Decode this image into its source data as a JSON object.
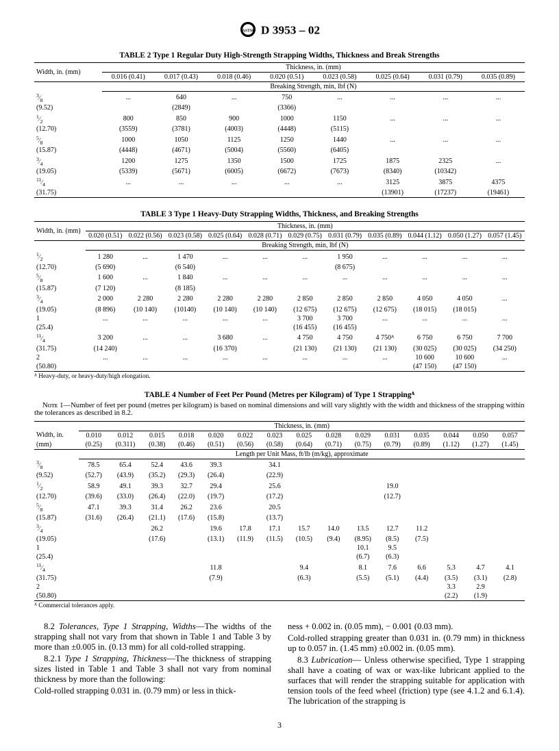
{
  "header": {
    "designation": "D 3953 – 02"
  },
  "table2": {
    "title": "TABLE 2  Type 1 Regular Duty High-Strength Strapping Widths, Thickness and Break Strengths",
    "width_header": "Width, in.\n(mm)",
    "thickness_header": "Thickness, in. (mm)",
    "thickness_cols": [
      "0.016 (0.41)",
      "0.017 (0.43)",
      "0.018 (0.46)",
      "0.020 (0.51)",
      "0.023 (0.58)",
      "0.025 (0.64)",
      "0.031 (0.79)",
      "0.035 (0.89)"
    ],
    "sub_header": "Breaking Strength, min, lbf (N)",
    "rows": [
      {
        "w1": "3⁄8",
        "w2": "(9.52)",
        "v": [
          [
            "...",
            ""
          ],
          [
            "640",
            "(2849)"
          ],
          [
            "...",
            ""
          ],
          [
            "750",
            "(3366)"
          ],
          [
            "...",
            ""
          ],
          [
            "...",
            ""
          ],
          [
            "...",
            ""
          ],
          [
            "...",
            ""
          ]
        ]
      },
      {
        "w1": "1⁄2",
        "w2": "(12.70)",
        "v": [
          [
            "800",
            "(3559)"
          ],
          [
            "850",
            "(3781)"
          ],
          [
            "900",
            "(4003)"
          ],
          [
            "1000",
            "(4448)"
          ],
          [
            "1150",
            "(5115)"
          ],
          [
            "...",
            ""
          ],
          [
            "...",
            ""
          ],
          [
            "...",
            ""
          ]
        ]
      },
      {
        "w1": "5⁄8",
        "w2": "(15.87)",
        "v": [
          [
            "1000",
            "(4448)"
          ],
          [
            "1050",
            "(4671)"
          ],
          [
            "1125",
            "(5004)"
          ],
          [
            "1250",
            "(5560)"
          ],
          [
            "1440",
            "(6405)"
          ],
          [
            "...",
            ""
          ],
          [
            "...",
            ""
          ],
          [
            "...",
            ""
          ]
        ]
      },
      {
        "w1": "3⁄4",
        "w2": "(19.05)",
        "v": [
          [
            "1200",
            "(5339)"
          ],
          [
            "1275",
            "(5671)"
          ],
          [
            "1350",
            "(6005)"
          ],
          [
            "1500",
            "(6672)"
          ],
          [
            "1725",
            "(7673)"
          ],
          [
            "1875",
            "(8340)"
          ],
          [
            "2325",
            "(10342)"
          ],
          [
            "...",
            ""
          ]
        ]
      },
      {
        "w1": "11⁄4",
        "w2": "(31.75)",
        "v": [
          [
            "...",
            ""
          ],
          [
            "...",
            ""
          ],
          [
            "...",
            ""
          ],
          [
            "...",
            ""
          ],
          [
            "...",
            ""
          ],
          [
            "3125",
            "(13901)"
          ],
          [
            "3875",
            "(17237)"
          ],
          [
            "4375",
            "(19461)"
          ]
        ]
      }
    ]
  },
  "table3": {
    "title": "TABLE 3  Type 1 Heavy-Duty Strapping Widths, Thickness, and Breaking Strengths",
    "width_header": "Width,\nin. (mm)",
    "thickness_header": "Thickness, in. (mm)",
    "thickness_cols": [
      "0.020 (0.51)",
      "0.022 (0.56)",
      "0.023 (0.58)",
      "0.025 (0.64)",
      "0.028 (0.71)",
      "0.029 (0.75)",
      "0.031 (0.79)",
      "0.035 (0.89)",
      "0.044 (1.12)",
      "0.050 (1.27)",
      "0.057 (1.45)"
    ],
    "sub_header": "Breaking Strength, min, lbf (N)",
    "rows": [
      {
        "w1": "1⁄2",
        "w2": "(12.70)",
        "v": [
          [
            "1 280",
            "(5 690)"
          ],
          [
            "...",
            ""
          ],
          [
            "1 470",
            "(6 540)"
          ],
          [
            "...",
            ""
          ],
          [
            "...",
            ""
          ],
          [
            "...",
            ""
          ],
          [
            "1 950",
            "(8 675)"
          ],
          [
            "...",
            ""
          ],
          [
            "...",
            ""
          ],
          [
            "...",
            ""
          ],
          [
            "...",
            ""
          ]
        ]
      },
      {
        "w1": "5⁄8",
        "w2": "(15.87)",
        "v": [
          [
            "1 600",
            "(7 120)"
          ],
          [
            "...",
            ""
          ],
          [
            "1 840",
            "(8 185)"
          ],
          [
            "...",
            ""
          ],
          [
            "...",
            ""
          ],
          [
            "...",
            ""
          ],
          [
            "...",
            ""
          ],
          [
            "...",
            ""
          ],
          [
            "...",
            ""
          ],
          [
            "...",
            ""
          ],
          [
            "...",
            ""
          ]
        ]
      },
      {
        "w1": "3⁄4",
        "w2": "(19.05)",
        "v": [
          [
            "2 000",
            "(8 896)"
          ],
          [
            "2 280",
            "(10 140)"
          ],
          [
            "2 280",
            "(10140)"
          ],
          [
            "2 280",
            "(10 140)"
          ],
          [
            "2 280",
            "(10 140)"
          ],
          [
            "2 850",
            "(12 675)"
          ],
          [
            "2 850",
            "(12 675)"
          ],
          [
            "2 850",
            "(12 675)"
          ],
          [
            "4 050",
            "(18 015)"
          ],
          [
            "4 050",
            "(18 015)"
          ],
          [
            "...",
            ""
          ]
        ]
      },
      {
        "w1": "1",
        "w2": "(25.4)",
        "v": [
          [
            "...",
            ""
          ],
          [
            "...",
            ""
          ],
          [
            "...",
            ""
          ],
          [
            "...",
            ""
          ],
          [
            "...",
            ""
          ],
          [
            "3 700",
            "(16 455)"
          ],
          [
            "3 700",
            "(16 455)"
          ],
          [
            "...",
            ""
          ],
          [
            "...",
            ""
          ],
          [
            "...",
            ""
          ],
          [
            "...",
            ""
          ]
        ]
      },
      {
        "w1": "11⁄4",
        "w2": "(31.75)",
        "v": [
          [
            "3 200",
            "(14 240)"
          ],
          [
            "...",
            ""
          ],
          [
            "...",
            ""
          ],
          [
            "3 680",
            "(16 370)"
          ],
          [
            "...",
            ""
          ],
          [
            "4 750",
            "(21 130)"
          ],
          [
            "4 750",
            "(21 130)"
          ],
          [
            "4 750ᴬ",
            "(21 130)"
          ],
          [
            "6 750",
            "(30 025)"
          ],
          [
            "6 750",
            "(30 025)"
          ],
          [
            "7 700",
            "(34 250)"
          ]
        ]
      },
      {
        "w1": "2",
        "w2": "(50.80)",
        "v": [
          [
            "...",
            ""
          ],
          [
            "...",
            ""
          ],
          [
            "...",
            ""
          ],
          [
            "...",
            ""
          ],
          [
            "...",
            ""
          ],
          [
            "...",
            ""
          ],
          [
            "...",
            ""
          ],
          [
            "...",
            ""
          ],
          [
            "10 600",
            "(47 150)"
          ],
          [
            "10 600",
            "(47 150)"
          ],
          [
            "...",
            ""
          ]
        ]
      }
    ],
    "footnote": "ᴬ Heavy-duty, or heavy-duty/high elongation."
  },
  "table4": {
    "title": "TABLE 4  Number of Feet Per Pound (Metres per Kilogram) of Type 1 Strappingᴬ",
    "note": "Nᴏᴛᴇ 1—Number of feet per pound (metres per kilogram) is based on nominal dimensions and will vary slightly with the width and thickness of the strapping within the tolerances as described in 8.2.",
    "width_header": "Width, in.\n(mm)",
    "thickness_header": "Thickness, in. (mm)",
    "thickness_cols": [
      [
        "0.010",
        "(0.25)"
      ],
      [
        "0.012",
        "(0.311)"
      ],
      [
        "0.015",
        "(0.38)"
      ],
      [
        "0.018",
        "(0.46)"
      ],
      [
        "0.020",
        "(0.51)"
      ],
      [
        "0.022",
        "(0.56)"
      ],
      [
        "0.023",
        "(0.58)"
      ],
      [
        "0.025",
        "(0.64)"
      ],
      [
        "0.028",
        "(0.71)"
      ],
      [
        "0.029",
        "(0.75)"
      ],
      [
        "0.031",
        "(0.79)"
      ],
      [
        "0.035",
        "(0.89)"
      ],
      [
        "0.044",
        "(1.12)"
      ],
      [
        "0.050",
        "(1.27)"
      ],
      [
        "0.057",
        "(1.45)"
      ]
    ],
    "sub_header": "Length per Unit Mass, ft/lb (m/kg), approximate",
    "rows": [
      {
        "w1": "3⁄8",
        "w2": "(9.52)",
        "v": [
          [
            "78.5",
            "(52.7)"
          ],
          [
            "65.4",
            "(43.9)"
          ],
          [
            "52.4",
            "(35.2)"
          ],
          [
            "43.6",
            "(29.3)"
          ],
          [
            "39.3",
            "(26.4)"
          ],
          [
            "",
            ""
          ],
          [
            "34.1",
            "(22.9)"
          ],
          [
            "",
            ""
          ],
          [
            "",
            ""
          ],
          [
            "",
            ""
          ],
          [
            "",
            ""
          ],
          [
            "",
            ""
          ],
          [
            "",
            ""
          ],
          [
            "",
            ""
          ],
          [
            "",
            ""
          ]
        ]
      },
      {
        "w1": "1⁄2",
        "w2": "(12.70)",
        "v": [
          [
            "58.9",
            "(39.6)"
          ],
          [
            "49.1",
            "(33.0)"
          ],
          [
            "39.3",
            "(26.4)"
          ],
          [
            "32.7",
            "(22.0)"
          ],
          [
            "29.4",
            "(19.7)"
          ],
          [
            "",
            ""
          ],
          [
            "25.6",
            "(17.2)"
          ],
          [
            "",
            ""
          ],
          [
            "",
            ""
          ],
          [
            "",
            ""
          ],
          [
            "19.0",
            "(12.7)"
          ],
          [
            "",
            ""
          ],
          [
            "",
            ""
          ],
          [
            "",
            ""
          ],
          [
            "",
            ""
          ]
        ]
      },
      {
        "w1": "5⁄8",
        "w2": "(15.87)",
        "v": [
          [
            "47.1",
            "(31.6)"
          ],
          [
            "39.3",
            "(26.4)"
          ],
          [
            "31.4",
            "(21.1)"
          ],
          [
            "26.2",
            "(17.6)"
          ],
          [
            "23.6",
            "(15.8)"
          ],
          [
            "",
            ""
          ],
          [
            "20.5",
            "(13.7)"
          ],
          [
            "",
            ""
          ],
          [
            "",
            ""
          ],
          [
            "",
            ""
          ],
          [
            "",
            ""
          ],
          [
            "",
            ""
          ],
          [
            "",
            ""
          ],
          [
            "",
            ""
          ],
          [
            "",
            ""
          ]
        ]
      },
      {
        "w1": "3⁄4",
        "w2": "(19.05)",
        "v": [
          [
            "",
            ""
          ],
          [
            "",
            ""
          ],
          [
            "26.2",
            "(17.6)"
          ],
          [
            "",
            ""
          ],
          [
            "19.6",
            "(13.1)"
          ],
          [
            "17.8",
            "(11.9)"
          ],
          [
            "17.1",
            "(11.5)"
          ],
          [
            "15.7",
            "(10.5)"
          ],
          [
            "14.0",
            "(9.4)"
          ],
          [
            "13.5",
            "(8.95)"
          ],
          [
            "12.7",
            "(8.5)"
          ],
          [
            "11.2",
            "(7.5)"
          ],
          [
            "",
            ""
          ],
          [
            "",
            ""
          ],
          [
            "",
            ""
          ]
        ]
      },
      {
        "w1": "1",
        "w2": "(25.4)",
        "v": [
          [
            "",
            ""
          ],
          [
            "",
            ""
          ],
          [
            "",
            ""
          ],
          [
            "",
            ""
          ],
          [
            "",
            ""
          ],
          [
            "",
            ""
          ],
          [
            "",
            ""
          ],
          [
            "",
            ""
          ],
          [
            "",
            ""
          ],
          [
            "10.1",
            "(6.7)"
          ],
          [
            "9.5",
            "(6.3)"
          ],
          [
            "",
            ""
          ],
          [
            "",
            ""
          ],
          [
            "",
            ""
          ],
          [
            "",
            ""
          ]
        ]
      },
      {
        "w1": "11⁄4",
        "w2": "(31.75)",
        "v": [
          [
            "",
            ""
          ],
          [
            "",
            ""
          ],
          [
            "",
            ""
          ],
          [
            "",
            ""
          ],
          [
            "11.8",
            "(7.9)"
          ],
          [
            "",
            ""
          ],
          [
            "",
            ""
          ],
          [
            "9.4",
            "(6.3)"
          ],
          [
            "",
            ""
          ],
          [
            "8.1",
            "(5.5)"
          ],
          [
            "7.6",
            "(5.1)"
          ],
          [
            "6.6",
            "(4.4)"
          ],
          [
            "5.3",
            "(3.5)"
          ],
          [
            "4.7",
            "(3.1)"
          ],
          [
            "4.1",
            "(2.8)"
          ]
        ]
      },
      {
        "w1": "2",
        "w2": "(50.80)",
        "v": [
          [
            "",
            ""
          ],
          [
            "",
            ""
          ],
          [
            "",
            ""
          ],
          [
            "",
            ""
          ],
          [
            "",
            ""
          ],
          [
            "",
            ""
          ],
          [
            "",
            ""
          ],
          [
            "",
            ""
          ],
          [
            "",
            ""
          ],
          [
            "",
            ""
          ],
          [
            "",
            ""
          ],
          [
            "",
            ""
          ],
          [
            "3.3",
            "(2.2)"
          ],
          [
            "2.9",
            "(1.9)"
          ],
          [
            "",
            ""
          ]
        ]
      }
    ],
    "footnote": "ᴬ Commercial tolerances apply."
  },
  "body": {
    "p1_label": "8.2 ",
    "p1_title": "Tolerances, Type 1 Strapping, Widths",
    "p1_text": "—The widths of the strapping shall not vary from that shown in Table 1 and Table 3 by more than ±0.005 in. (0.13 mm) for all cold-rolled strapping.",
    "p2_label": "8.2.1 ",
    "p2_title": "Type 1 Strapping, Thickness",
    "p2_text": "—The thickness of strapping sizes listed in Table 1 and Table 3 shall not vary from nominal thickness by more than the following:",
    "p2a": "Cold-rolled strapping 0.031 in. (0.79 mm) or less in thick-",
    "p2b": "ness + 0.002 in. (0.05 mm), − 0.001 (0.03 mm).",
    "p2c": "Cold-rolled strapping greater than 0.031 in. (0.79 mm) in thickness up to 0.057 in. (1.45 mm) ±0.002 in. (0.05 mm).",
    "p3_label": "8.3 ",
    "p3_title": "Lubrication",
    "p3_text": "— Unless otherwise specified, Type 1 strapping shall have a coating of wax or wax-like lubricant applied to the surfaces that will render the strapping suitable for application with tension tools of the feed wheel (friction) type (see 4.1.2 and 6.1.4). The lubrication of the strapping is"
  },
  "page": "3"
}
